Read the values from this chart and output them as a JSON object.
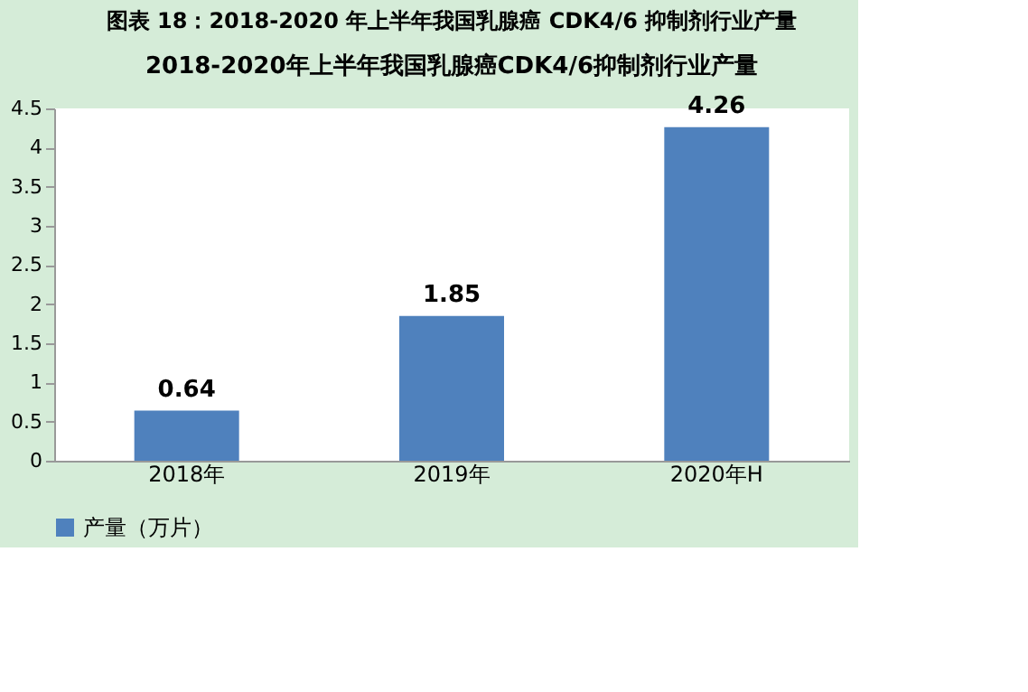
{
  "chart_data": {
    "type": "bar",
    "title": "图表 18：2018-2020 年上半年我国乳腺癌 CDK4/6 抑制剂行业产量",
    "subtitle": "2018-2020年上半年我国乳腺癌CDK4/6抑制剂行业产量",
    "categories": [
      "2018年",
      "2019年",
      "2020年H"
    ],
    "series": [
      {
        "name": "产量（万片）",
        "color": "#4f81bd",
        "values": [
          0.64,
          1.85,
          4.26
        ]
      }
    ],
    "ylim": [
      0,
      4.5
    ],
    "yticks": [
      0,
      0.5,
      1,
      1.5,
      2,
      2.5,
      3,
      3.5,
      4,
      4.5
    ],
    "grid": false,
    "legend": "bottom",
    "data_labels": true
  }
}
